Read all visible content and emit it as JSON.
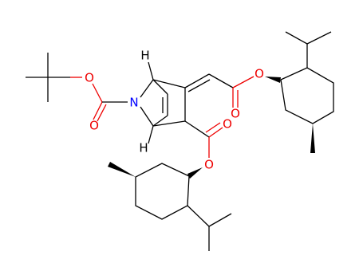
{
  "atoms": [
    {
      "label": "O"
    },
    {
      "label": "O"
    },
    {
      "label": "N"
    },
    {
      "label": "H"
    },
    {
      "label": "H"
    },
    {
      "label": "O"
    },
    {
      "label": "O"
    },
    {
      "label": "O"
    },
    {
      "label": "O"
    }
  ]
}
